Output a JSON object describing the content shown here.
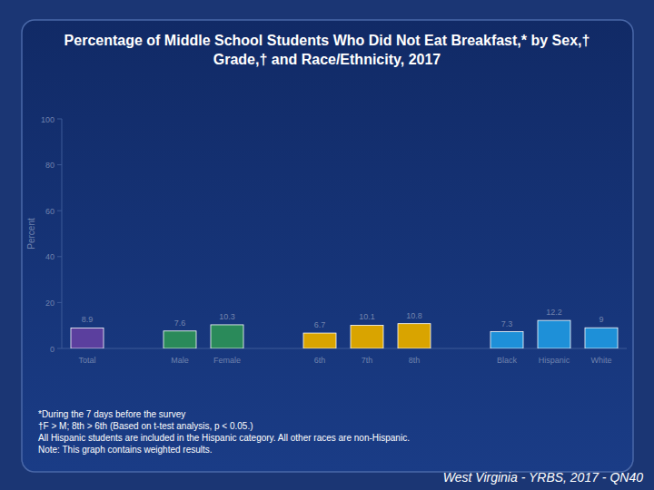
{
  "chart_data": {
    "type": "bar",
    "title": "Percentage of Middle School Students Who Did Not Eat Breakfast,* by Sex,† Grade,† and Race/Ethnicity, 2017",
    "y_label": "Percent",
    "categories": [
      "Total",
      "Male",
      "Female",
      "6th",
      "7th",
      "8th",
      "Black",
      "Hispanic",
      "White"
    ],
    "values": [
      8.9,
      7.6,
      10.3,
      6.7,
      10.1,
      10.8,
      7.3,
      12.2,
      9.0
    ],
    "colors": [
      "#5b3f9e",
      "#2a8a5a",
      "#2a8a5a",
      "#d9a400",
      "#d9a400",
      "#d9a400",
      "#1e90d8",
      "#1e90d8",
      "#1e90d8"
    ],
    "ylim": [
      0,
      100
    ],
    "yticks": [
      0,
      20,
      40,
      60,
      80,
      100
    ],
    "grid": false,
    "data_labels": true,
    "annotations": [
      "*During the 7 days before the survey",
      "†F > M; 8th > 6th (Based on t-test analysis, p < 0.05.)",
      "All Hispanic students are included in the Hispanic category.  All other races are non-Hispanic.",
      "Note: This graph contains weighted results."
    ],
    "source": "West Virginia - YRBS, 2017 - QN40"
  }
}
